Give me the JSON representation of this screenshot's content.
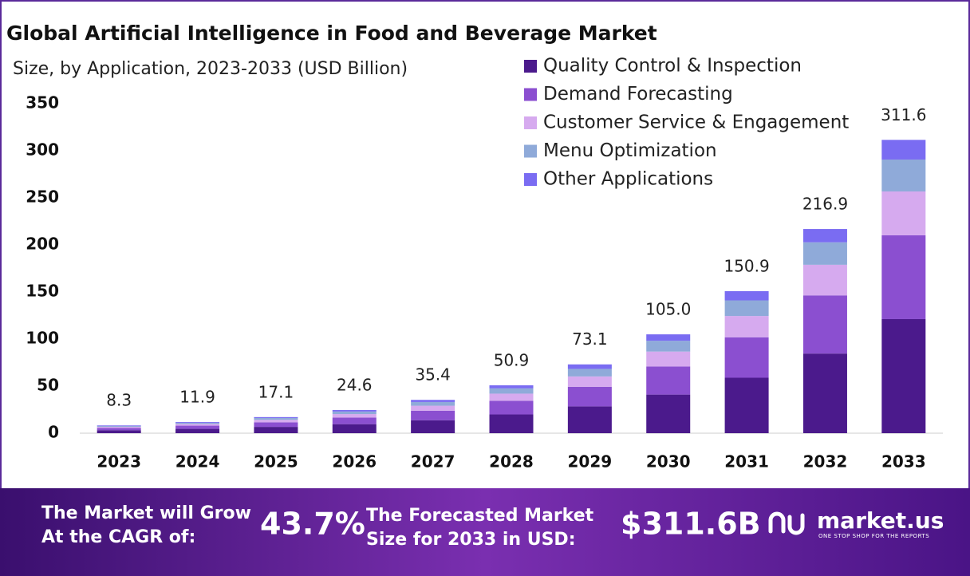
{
  "chart_data": {
    "type": "stacked_bar",
    "title": "Global Artificial Intelligence in Food and Beverage Market",
    "subtitle": "Size, by Application, 2023-2033 (USD Billion)",
    "categories": [
      "2023",
      "2024",
      "2025",
      "2026",
      "2027",
      "2028",
      "2029",
      "2030",
      "2031",
      "2032",
      "2033"
    ],
    "series": [
      {
        "name": "Quality Control & Inspection",
        "color": "#4b1a8c",
        "values": [
          3.2,
          4.6,
          6.7,
          9.6,
          13.8,
          19.9,
          28.5,
          41.0,
          58.9,
          84.6,
          121.2
        ]
      },
      {
        "name": "Demand Forecasting",
        "color": "#8b4fd0",
        "values": [
          2.4,
          3.4,
          4.9,
          7.0,
          10.1,
          14.5,
          20.8,
          29.9,
          43.0,
          61.8,
          89.0
        ]
      },
      {
        "name": "Customer Service & Engagement",
        "color": "#d6aaef",
        "values": [
          1.2,
          1.8,
          2.6,
          3.7,
          5.3,
          7.6,
          11.0,
          15.8,
          22.6,
          32.5,
          46.6
        ]
      },
      {
        "name": "Menu Optimization",
        "color": "#8faad9",
        "values": [
          0.9,
          1.3,
          1.9,
          2.7,
          3.9,
          5.6,
          8.0,
          11.5,
          16.6,
          23.9,
          33.9
        ]
      },
      {
        "name": "Other Applications",
        "color": "#7a6cf2",
        "values": [
          0.6,
          0.8,
          1.0,
          1.6,
          2.3,
          3.3,
          4.8,
          6.8,
          9.8,
          14.1,
          20.9
        ]
      }
    ],
    "totals": [
      8.3,
      11.9,
      17.1,
      24.6,
      35.4,
      50.9,
      73.1,
      105.0,
      150.9,
      216.9,
      311.6
    ],
    "total_labels": [
      "8.3",
      "11.9",
      "17.1",
      "24.6",
      "35.4",
      "50.9",
      "73.1",
      "105.0",
      "150.9",
      "216.9",
      "311.6"
    ],
    "ylim": [
      0,
      350
    ],
    "yticks": [
      0,
      50,
      100,
      150,
      200,
      250,
      300,
      350
    ],
    "grid": false,
    "legend": "top-right"
  },
  "footer": {
    "cagr_text": [
      "The Market will Grow",
      "At the CAGR of:"
    ],
    "cagr_value": "43.7%",
    "size_text": [
      "The Forecasted Market",
      "Size for 2033 in USD:"
    ],
    "size_value": "$311.6B",
    "brand": "market.us",
    "tagline": "ONE STOP SHOP FOR THE REPORTS"
  }
}
